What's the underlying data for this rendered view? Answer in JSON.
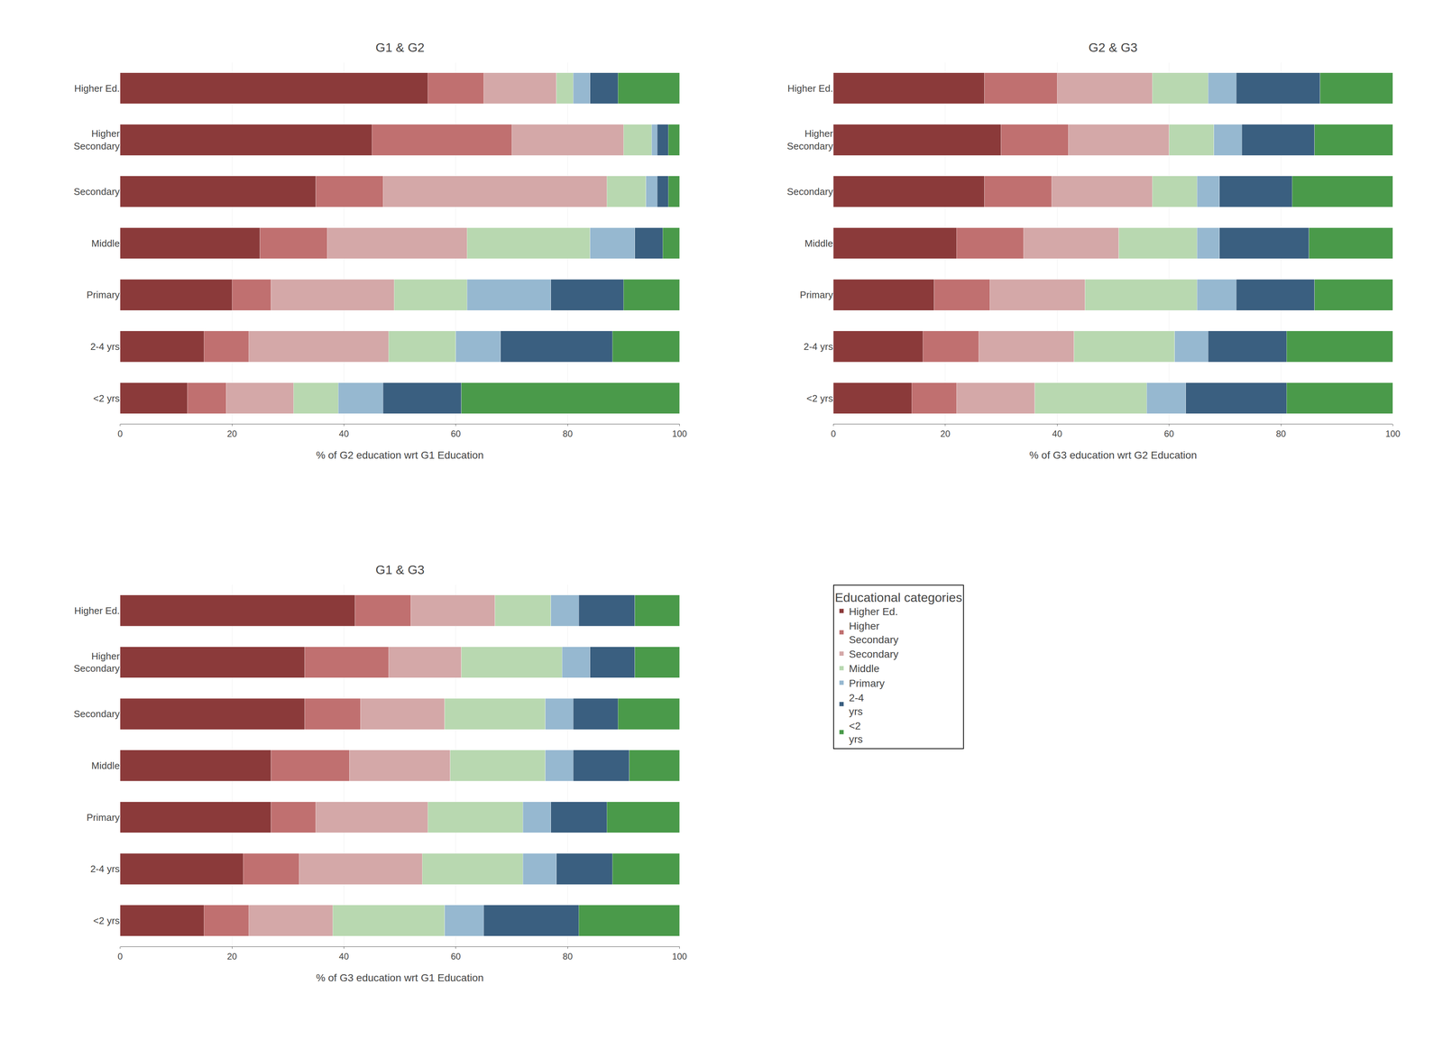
{
  "legend_title": "Educational categories",
  "chart_data": [
    {
      "type": "bar",
      "orientation": "horizontal",
      "stacked": true,
      "grid": true,
      "title": "G1 & G2",
      "x_label": "% of G2 education wrt G1 Education",
      "categories": [
        "Higher Ed.",
        "Higher\nSecondary",
        "Secondary",
        "Middle",
        "Primary",
        "2-4 yrs",
        "<2 yrs"
      ],
      "xlim": [
        0,
        100
      ],
      "xticks": [
        0,
        20,
        40,
        60,
        80,
        100
      ],
      "series": [
        {
          "name": "Higher Ed.",
          "color": "#8B3A3A",
          "values": [
            55,
            45,
            35,
            25,
            20,
            15,
            12
          ]
        },
        {
          "name": "Higher\nSecondary",
          "color": "#C07070",
          "values": [
            10,
            25,
            12,
            12,
            7,
            8,
            7
          ]
        },
        {
          "name": "Secondary",
          "color": "#D4A8A8",
          "values": [
            13,
            20,
            40,
            25,
            22,
            25,
            12
          ]
        },
        {
          "name": "Middle",
          "color": "#B8D8B0",
          "values": [
            3,
            5,
            7,
            22,
            13,
            12,
            8
          ]
        },
        {
          "name": "Primary",
          "color": "#96B8D0",
          "values": [
            3,
            1,
            2,
            8,
            15,
            8,
            8
          ]
        },
        {
          "name": "2-4\nyrs",
          "color": "#3A5F80",
          "values": [
            5,
            2,
            2,
            5,
            13,
            20,
            14
          ]
        },
        {
          "name": "<2\nyrs",
          "color": "#4A9A4A",
          "values": [
            11,
            2,
            2,
            3,
            10,
            12,
            39
          ]
        }
      ]
    },
    {
      "type": "bar",
      "orientation": "horizontal",
      "stacked": true,
      "grid": true,
      "title": "G2 & G3",
      "x_label": "% of G3 education wrt G2 Education",
      "categories": [
        "Higher Ed.",
        "Higher\nSecondary",
        "Secondary",
        "Middle",
        "Primary",
        "2-4 yrs",
        "<2 yrs"
      ],
      "xlim": [
        0,
        100
      ],
      "xticks": [
        0,
        20,
        40,
        60,
        80,
        100
      ],
      "series": [
        {
          "name": "Higher Ed.",
          "color": "#8B3A3A",
          "values": [
            27,
            30,
            27,
            22,
            18,
            16,
            14
          ]
        },
        {
          "name": "Higher\nSecondary",
          "color": "#C07070",
          "values": [
            13,
            12,
            12,
            12,
            10,
            10,
            8
          ]
        },
        {
          "name": "Secondary",
          "color": "#D4A8A8",
          "values": [
            17,
            18,
            18,
            17,
            17,
            17,
            14
          ]
        },
        {
          "name": "Middle",
          "color": "#B8D8B0",
          "values": [
            10,
            8,
            8,
            14,
            20,
            18,
            20
          ]
        },
        {
          "name": "Primary",
          "color": "#96B8D0",
          "values": [
            5,
            5,
            4,
            4,
            7,
            6,
            7
          ]
        },
        {
          "name": "2-4\nyrs",
          "color": "#3A5F80",
          "values": [
            15,
            13,
            13,
            16,
            14,
            14,
            18
          ]
        },
        {
          "name": "<2\nyrs",
          "color": "#4A9A4A",
          "values": [
            13,
            14,
            18,
            15,
            14,
            19,
            19
          ]
        }
      ]
    },
    {
      "type": "bar",
      "orientation": "horizontal",
      "stacked": true,
      "grid": true,
      "title": "G1 & G3",
      "x_label": "% of G3 education wrt G1 Education",
      "categories": [
        "Higher Ed.",
        "Higher\nSecondary",
        "Secondary",
        "Middle",
        "Primary",
        "2-4 yrs",
        "<2 yrs"
      ],
      "xlim": [
        0,
        100
      ],
      "xticks": [
        0,
        20,
        40,
        60,
        80,
        100
      ],
      "series": [
        {
          "name": "Higher Ed.",
          "color": "#8B3A3A",
          "values": [
            42,
            33,
            33,
            27,
            27,
            22,
            15
          ]
        },
        {
          "name": "Higher\nSecondary",
          "color": "#C07070",
          "values": [
            10,
            15,
            10,
            14,
            8,
            10,
            8
          ]
        },
        {
          "name": "Secondary",
          "color": "#D4A8A8",
          "values": [
            15,
            13,
            15,
            18,
            20,
            22,
            15
          ]
        },
        {
          "name": "Middle",
          "color": "#B8D8B0",
          "values": [
            10,
            18,
            18,
            17,
            17,
            18,
            20
          ]
        },
        {
          "name": "Primary",
          "color": "#96B8D0",
          "values": [
            5,
            5,
            5,
            5,
            5,
            6,
            7
          ]
        },
        {
          "name": "2-4\nyrs",
          "color": "#3A5F80",
          "values": [
            10,
            8,
            8,
            10,
            10,
            10,
            17
          ]
        },
        {
          "name": "<2\nyrs",
          "color": "#4A9A4A",
          "values": [
            8,
            8,
            11,
            9,
            13,
            12,
            18
          ]
        }
      ]
    }
  ]
}
